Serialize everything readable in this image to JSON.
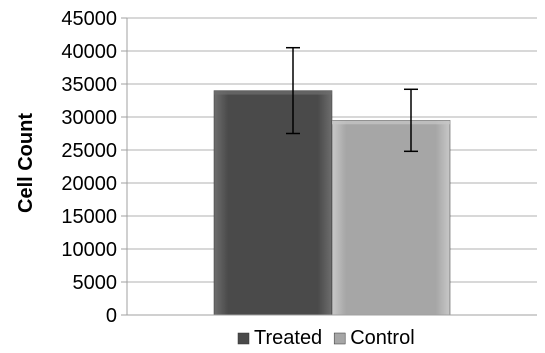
{
  "chart_data": {
    "type": "bar",
    "categories": [
      ""
    ],
    "series": [
      {
        "name": "Treated",
        "values": [
          34000
        ],
        "error": [
          6500
        ],
        "color": "#4a4a4a",
        "highlight": "#6e6e6e"
      },
      {
        "name": "Control",
        "values": [
          29500
        ],
        "error": [
          4700
        ],
        "color": "#a6a6a6",
        "highlight": "#c8c8c8"
      }
    ],
    "title": "",
    "xlabel": "",
    "ylabel": "Cell Count",
    "ylim": [
      0,
      45000
    ],
    "yticks": [
      0,
      5000,
      10000,
      15000,
      20000,
      25000,
      30000,
      35000,
      40000,
      45000
    ],
    "grid": true,
    "legend_position": "bottom"
  }
}
